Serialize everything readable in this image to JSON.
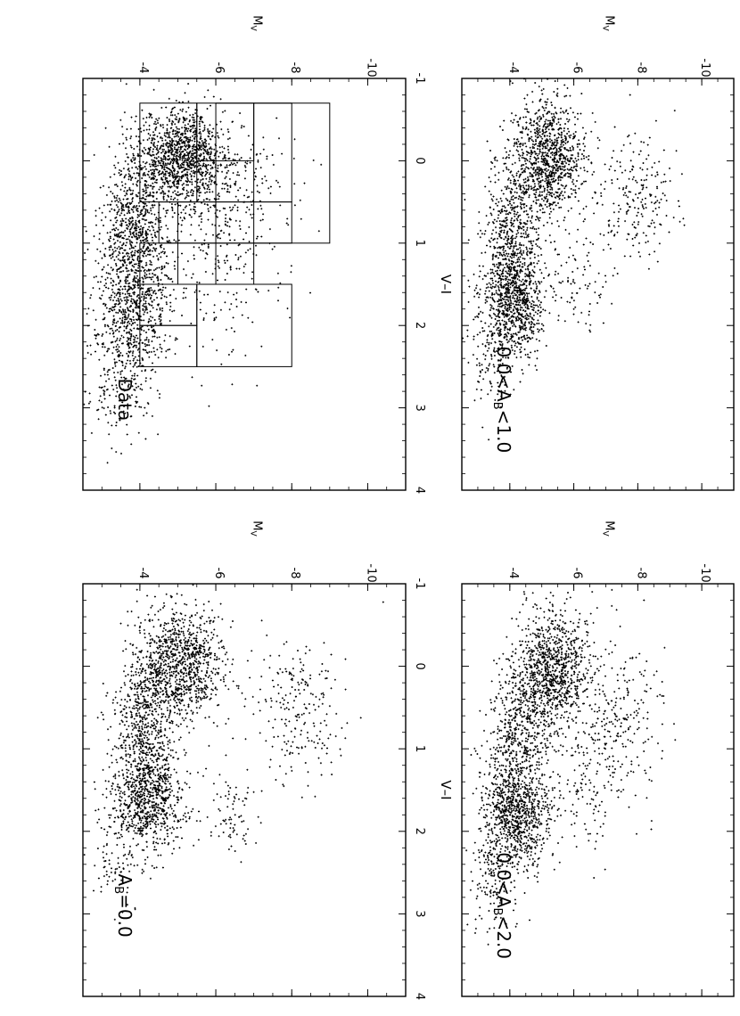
{
  "figure": {
    "axis_labels": {
      "x": "V–I",
      "y_main": "M",
      "y_sub": "V"
    },
    "x_ticks": [
      -1,
      0,
      1,
      2,
      3,
      4
    ],
    "y_ticks": [
      -4,
      -6,
      -8,
      -10
    ]
  },
  "chart_data": [
    {
      "type": "scatter",
      "panel": "top-left",
      "label_text": "Data",
      "xlim": [
        -1,
        4
      ],
      "ylim": [
        -2.5,
        -11
      ],
      "xlabel": "V–I",
      "ylabel": "M_V",
      "grid": false,
      "density_clusters": [
        {
          "x": -0.05,
          "y": -5.1,
          "sx": 0.28,
          "sy": 0.55,
          "n": 1100
        },
        {
          "x": 0.9,
          "y": -3.9,
          "sx": 0.55,
          "sy": 0.45,
          "n": 900
        },
        {
          "x": 1.9,
          "y": -3.8,
          "sx": 0.45,
          "sy": 0.5,
          "n": 600
        },
        {
          "x": 2.8,
          "y": -3.5,
          "sx": 0.3,
          "sy": 0.4,
          "n": 120
        },
        {
          "x": 0.4,
          "y": -6.3,
          "sx": 0.5,
          "sy": 0.7,
          "n": 300
        },
        {
          "x": 1.6,
          "y": -6.0,
          "sx": 0.5,
          "sy": 0.8,
          "n": 120
        }
      ],
      "grid_boxes": [
        {
          "x0": -0.7,
          "x1": 1.0,
          "y0": -6.0,
          "y1": -9.0
        },
        {
          "x0": -0.7,
          "x1": 0.5,
          "y0": -7.0,
          "y1": -8.0
        },
        {
          "x0": -0.7,
          "x1": 0.0,
          "y0": -5.5,
          "y1": -7.0
        },
        {
          "x0": 0.5,
          "x1": 1.0,
          "y0": -4.5,
          "y1": -8.0
        },
        {
          "x0": 0.5,
          "x1": 1.5,
          "y0": -5.0,
          "y1": -7.0
        },
        {
          "x0": 1.0,
          "x1": 1.5,
          "y0": -4.0,
          "y1": -6.0
        },
        {
          "x0": 1.5,
          "x1": 2.5,
          "y0": -5.5,
          "y1": -8.0
        },
        {
          "x0": 1.5,
          "x1": 2.0,
          "y0": -4.0,
          "y1": -5.5
        },
        {
          "x0": 2.0,
          "x1": 2.5,
          "y0": -4.0,
          "y1": -5.5
        },
        {
          "x0": -0.7,
          "x1": 0.5,
          "y0": -4.0,
          "y1": -5.5
        }
      ]
    },
    {
      "type": "scatter",
      "panel": "top-right",
      "label_text": "A_B=0.0",
      "label_main": "A",
      "label_sub": "B",
      "label_rest": "=0.0",
      "xlim": [
        -1,
        4
      ],
      "ylim": [
        -2.5,
        -11
      ],
      "xlabel": "V–I",
      "ylabel": "M_V",
      "grid": false,
      "density_clusters": [
        {
          "x": 0.0,
          "y": -5.0,
          "sx": 0.35,
          "sy": 0.6,
          "n": 1100
        },
        {
          "x": 1.6,
          "y": -4.2,
          "sx": 0.3,
          "sy": 0.5,
          "n": 800
        },
        {
          "x": 0.8,
          "y": -4.1,
          "sx": 0.4,
          "sy": 0.4,
          "n": 500
        },
        {
          "x": 0.5,
          "y": -8.2,
          "sx": 0.45,
          "sy": 0.6,
          "n": 220
        },
        {
          "x": 1.8,
          "y": -6.3,
          "sx": 0.25,
          "sy": 0.35,
          "n": 80
        },
        {
          "x": 2.4,
          "y": -3.4,
          "sx": 0.3,
          "sy": 0.4,
          "n": 80
        }
      ]
    },
    {
      "type": "scatter",
      "panel": "bottom-left",
      "label_text": "0.0<A_B<1.0",
      "label_main": "0.0<A",
      "label_sub": "B",
      "label_rest": "<1.0",
      "xlim": [
        -1,
        4
      ],
      "ylim": [
        -2.5,
        -11
      ],
      "xlabel": "V–I",
      "ylabel": "M_V",
      "grid": false,
      "density_clusters": [
        {
          "x": -0.05,
          "y": -5.2,
          "sx": 0.35,
          "sy": 0.55,
          "n": 1000
        },
        {
          "x": 1.7,
          "y": -4.1,
          "sx": 0.35,
          "sy": 0.5,
          "n": 900
        },
        {
          "x": 0.8,
          "y": -4.1,
          "sx": 0.45,
          "sy": 0.45,
          "n": 500
        },
        {
          "x": 0.4,
          "y": -7.8,
          "sx": 0.4,
          "sy": 0.7,
          "n": 220
        },
        {
          "x": 1.5,
          "y": -6.2,
          "sx": 0.35,
          "sy": 0.5,
          "n": 90
        },
        {
          "x": 2.5,
          "y": -3.4,
          "sx": 0.3,
          "sy": 0.35,
          "n": 90
        }
      ]
    },
    {
      "type": "scatter",
      "panel": "bottom-right",
      "label_text": "0.0<A_B<2.0",
      "label_main": "0.0<A",
      "label_sub": "B",
      "label_rest": "<2.0",
      "xlim": [
        -1,
        4
      ],
      "ylim": [
        -2.5,
        -11
      ],
      "xlabel": "V–I",
      "ylabel": "M_V",
      "grid": false,
      "density_clusters": [
        {
          "x": 0.05,
          "y": -5.3,
          "sx": 0.4,
          "sy": 0.6,
          "n": 1000
        },
        {
          "x": 1.8,
          "y": -4.2,
          "sx": 0.35,
          "sy": 0.55,
          "n": 900
        },
        {
          "x": 0.9,
          "y": -4.3,
          "sx": 0.45,
          "sy": 0.5,
          "n": 500
        },
        {
          "x": 0.6,
          "y": -7.4,
          "sx": 0.5,
          "sy": 0.7,
          "n": 250
        },
        {
          "x": 1.5,
          "y": -6.4,
          "sx": 0.45,
          "sy": 0.6,
          "n": 120
        },
        {
          "x": 2.6,
          "y": -3.4,
          "sx": 0.3,
          "sy": 0.35,
          "n": 120
        }
      ]
    }
  ]
}
